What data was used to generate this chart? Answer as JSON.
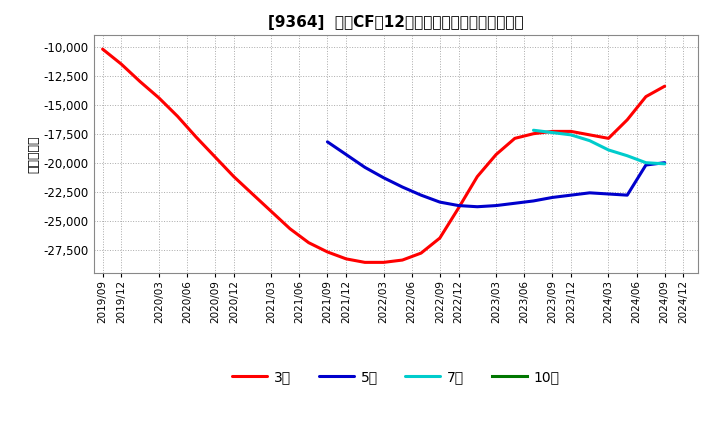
{
  "title": "[9364]  投資CFの12か月移動合計の平均値の推移",
  "ylabel": "（百万円）",
  "background_color": "#ffffff",
  "plot_bg_color": "#ffffff",
  "grid_color": "#aaaaaa",
  "ylim": [
    -29500,
    -9000
  ],
  "yticks": [
    -10000,
    -12500,
    -15000,
    -17500,
    -20000,
    -22500,
    -25000,
    -27500
  ],
  "series": {
    "3year": {
      "color": "#ff0000",
      "label": "3年",
      "x": [
        2019.75,
        2019.917,
        2020.083,
        2020.25,
        2020.417,
        2020.583,
        2020.75,
        2020.917,
        2021.083,
        2021.25,
        2021.417,
        2021.583,
        2021.75,
        2021.917,
        2022.083,
        2022.25,
        2022.417,
        2022.583,
        2022.75,
        2022.917,
        2023.083,
        2023.25,
        2023.417,
        2023.583,
        2023.75,
        2023.917,
        2024.083,
        2024.25,
        2024.417,
        2024.583,
        2024.75
      ],
      "y": [
        -10200,
        -11500,
        -13000,
        -14400,
        -16000,
        -17800,
        -19500,
        -21200,
        -22700,
        -24200,
        -25700,
        -26900,
        -27700,
        -28300,
        -28600,
        -28600,
        -28400,
        -27800,
        -26500,
        -23900,
        -21200,
        -19300,
        -17900,
        -17500,
        -17300,
        -17300,
        -17600,
        -17900,
        -16300,
        -14300,
        -13400
      ]
    },
    "5year": {
      "color": "#0000cc",
      "label": "5年",
      "x": [
        2021.75,
        2021.917,
        2022.083,
        2022.25,
        2022.417,
        2022.583,
        2022.75,
        2022.917,
        2023.083,
        2023.25,
        2023.417,
        2023.583,
        2023.75,
        2023.917,
        2024.083,
        2024.25,
        2024.417,
        2024.583,
        2024.75
      ],
      "y": [
        -18200,
        -19300,
        -20400,
        -21300,
        -22100,
        -22800,
        -23400,
        -23700,
        -23800,
        -23700,
        -23500,
        -23300,
        -23000,
        -22800,
        -22600,
        -22700,
        -22800,
        -20200,
        -20000
      ]
    },
    "7year": {
      "color": "#00cccc",
      "label": "7年",
      "x": [
        2023.583,
        2023.667,
        2023.75,
        2023.917,
        2024.083,
        2024.25,
        2024.417,
        2024.583,
        2024.75
      ],
      "y": [
        -17200,
        -17300,
        -17400,
        -17600,
        -18100,
        -18900,
        -19400,
        -20000,
        -20100
      ]
    },
    "10year": {
      "color": "#007700",
      "label": "10年",
      "x": [],
      "y": []
    }
  },
  "xtick_labels": [
    "2019/09",
    "2019/12",
    "2020/03",
    "2020/06",
    "2020/09",
    "2020/12",
    "2021/03",
    "2021/06",
    "2021/09",
    "2021/12",
    "2022/03",
    "2022/06",
    "2022/09",
    "2022/12",
    "2023/03",
    "2023/06",
    "2023/09",
    "2023/12",
    "2024/03",
    "2024/06",
    "2024/09",
    "2024/12"
  ],
  "xtick_positions": [
    2019.75,
    2019.917,
    2020.25,
    2020.5,
    2020.75,
    2020.917,
    2021.25,
    2021.5,
    2021.75,
    2021.917,
    2022.25,
    2022.5,
    2022.75,
    2022.917,
    2023.25,
    2023.5,
    2023.75,
    2023.917,
    2024.25,
    2024.5,
    2024.75,
    2024.917
  ],
  "xlim": [
    2019.67,
    2025.05
  ]
}
